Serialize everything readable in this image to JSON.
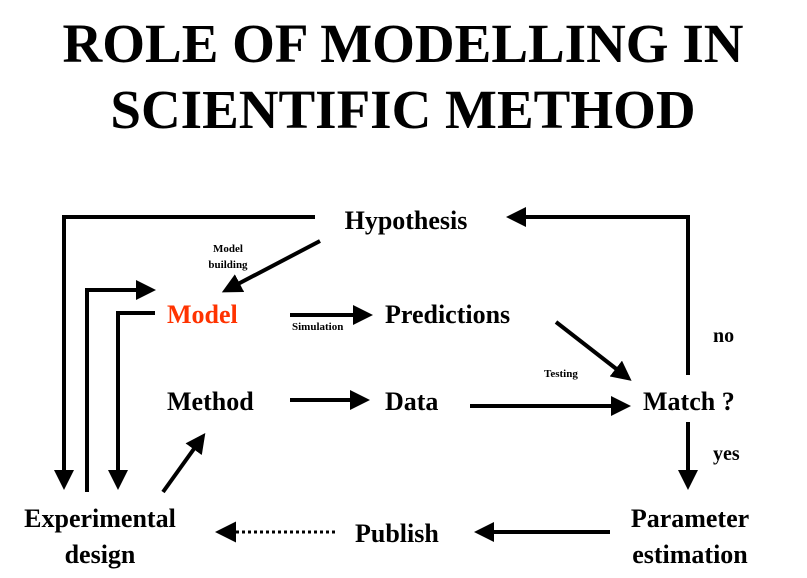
{
  "title": {
    "line1": "ROLE OF MODELLING IN",
    "line2": "SCIENTIFIC METHOD"
  },
  "nodes": {
    "hypothesis": "Hypothesis",
    "model": "Model",
    "predictions": "Predictions",
    "method": "Method",
    "data": "Data",
    "match": "Match ?",
    "experimental_line1": "Experimental",
    "experimental_line2": "design",
    "publish": "Publish",
    "parameter_line1": "Parameter",
    "parameter_line2": "estimation"
  },
  "edge_labels": {
    "model_building_line1": "Model",
    "model_building_line2": "building",
    "simulation": "Simulation",
    "testing": "Testing",
    "no": "no",
    "yes": "yes"
  },
  "colors": {
    "model_highlight": "#ff3300",
    "default": "#000000"
  }
}
